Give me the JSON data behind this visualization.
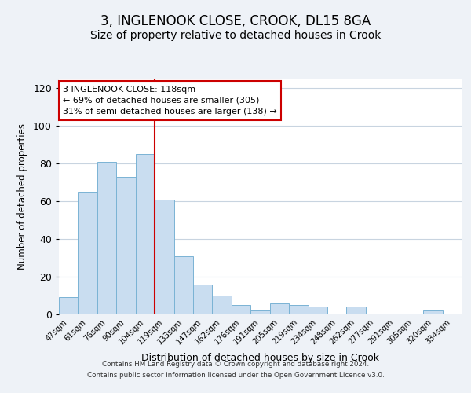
{
  "title": "3, INGLENOOK CLOSE, CROOK, DL15 8GA",
  "subtitle": "Size of property relative to detached houses in Crook",
  "xlabel": "Distribution of detached houses by size in Crook",
  "ylabel": "Number of detached properties",
  "footer_lines": [
    "Contains HM Land Registry data © Crown copyright and database right 2024.",
    "Contains public sector information licensed under the Open Government Licence v3.0."
  ],
  "categories": [
    "47sqm",
    "61sqm",
    "76sqm",
    "90sqm",
    "104sqm",
    "119sqm",
    "133sqm",
    "147sqm",
    "162sqm",
    "176sqm",
    "191sqm",
    "205sqm",
    "219sqm",
    "234sqm",
    "248sqm",
    "262sqm",
    "277sqm",
    "291sqm",
    "305sqm",
    "320sqm",
    "334sqm"
  ],
  "values": [
    9,
    65,
    81,
    73,
    85,
    61,
    31,
    16,
    10,
    5,
    2,
    6,
    5,
    4,
    0,
    4,
    0,
    0,
    0,
    2,
    0
  ],
  "bar_color": "#c9ddf0",
  "bar_edge_color": "#7ab3d4",
  "vline_color": "#cc0000",
  "annotation_box_color": "#cc0000",
  "annotation_line1": "3 INGLENOOK CLOSE: 118sqm",
  "annotation_line2": "← 69% of detached houses are smaller (305)",
  "annotation_line3": "31% of semi-detached houses are larger (138) →",
  "ylim": [
    0,
    125
  ],
  "yticks": [
    0,
    20,
    40,
    60,
    80,
    100,
    120
  ],
  "background_color": "#eef2f7",
  "plot_background": "#ffffff",
  "grid_color": "#c8d4e0",
  "title_fontsize": 12,
  "subtitle_fontsize": 10,
  "annotation_fontsize": 8.0,
  "vline_bin_index": 5
}
